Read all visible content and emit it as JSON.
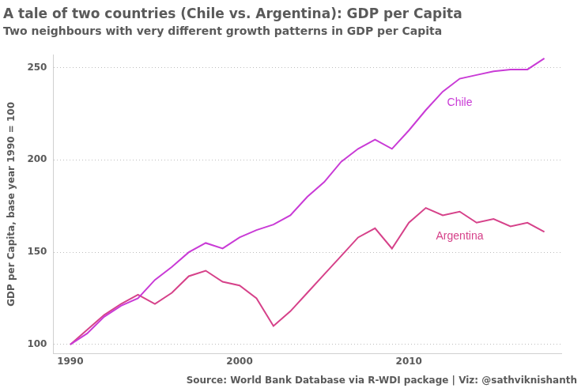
{
  "chart_data": {
    "type": "line",
    "title": "A tale of two countries (Chile vs. Argentina): GDP per Capita",
    "subtitle": "Two neighbours with very different growth patterns in GDP per Capita",
    "y_label": "GDP per Capita, base year 1990 = 100",
    "caption": "Source: World Bank Database via R-WDI package | Viz: @sathviknishanth",
    "x": [
      1990,
      1991,
      1992,
      1993,
      1994,
      1995,
      1996,
      1997,
      1998,
      1999,
      2000,
      2001,
      2002,
      2003,
      2004,
      2005,
      2006,
      2007,
      2008,
      2009,
      2010,
      2011,
      2012,
      2013,
      2014,
      2015,
      2016,
      2017,
      2018
    ],
    "series": [
      {
        "name": "Chile",
        "color": "#c93bd6",
        "values": [
          100,
          106,
          115,
          121,
          125,
          135,
          142,
          150,
          155,
          152,
          158,
          162,
          165,
          170,
          180,
          188,
          199,
          206,
          211,
          206,
          216,
          227,
          237,
          244,
          246,
          248,
          249,
          249,
          255
        ]
      },
      {
        "name": "Argentina",
        "color": "#d6428a",
        "values": [
          100,
          108,
          116,
          122,
          127,
          122,
          128,
          137,
          140,
          134,
          132,
          125,
          110,
          118,
          128,
          138,
          148,
          158,
          163,
          152,
          166,
          174,
          170,
          172,
          166,
          168,
          164,
          166,
          161
        ]
      }
    ],
    "xlim": [
      1989,
      2019
    ],
    "xticks": [
      1990,
      2000,
      2010
    ],
    "ylim": [
      95,
      257
    ],
    "yticks": [
      100,
      150,
      200,
      250
    ],
    "grid": "y"
  }
}
